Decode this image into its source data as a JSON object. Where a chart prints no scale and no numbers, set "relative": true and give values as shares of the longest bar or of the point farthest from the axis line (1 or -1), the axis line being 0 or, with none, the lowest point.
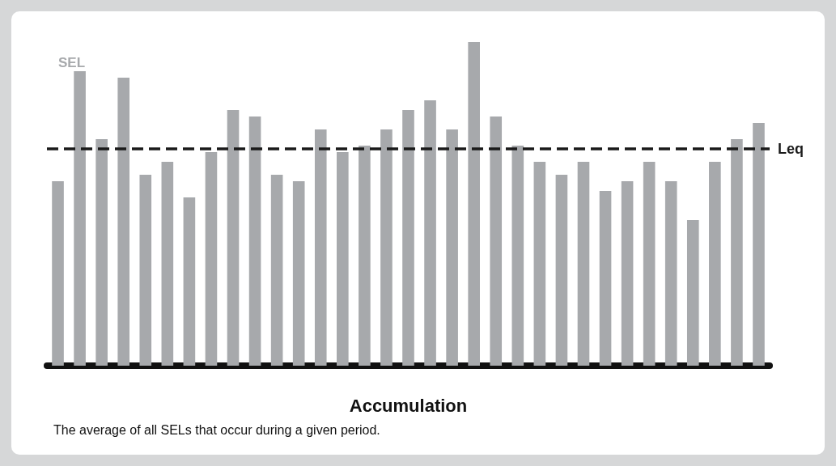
{
  "chart_data": {
    "type": "bar",
    "relative": true,
    "xlabel": "Accumulation",
    "categories": [
      null,
      null,
      null,
      null,
      null,
      null,
      null,
      null,
      null,
      null,
      null,
      null,
      null,
      null,
      null,
      null,
      null,
      null,
      null,
      null,
      null,
      null,
      null,
      null,
      null,
      null,
      null,
      null,
      null,
      null,
      null,
      null,
      null
    ],
    "series": [
      {
        "name": "SEL",
        "color": "#a7a9ac",
        "values": [
          0.57,
          0.91,
          0.7,
          0.89,
          0.59,
          0.63,
          0.52,
          0.66,
          0.79,
          0.77,
          0.59,
          0.57,
          0.73,
          0.66,
          0.68,
          0.73,
          0.79,
          0.82,
          0.73,
          1,
          0.77,
          0.68,
          0.63,
          0.59,
          0.63,
          0.54,
          0.57,
          0.63,
          0.57,
          0.45,
          0.63,
          0.7,
          0.75
        ]
      }
    ],
    "ref_lines": [
      {
        "axis": "y",
        "value": 0.67,
        "label": "Leq",
        "color": "#1a1a1a",
        "line_style": "dashed"
      }
    ],
    "annotations": [
      "The average of all SELs that occur during a given period."
    ],
    "grid": false,
    "legend": "top left"
  }
}
